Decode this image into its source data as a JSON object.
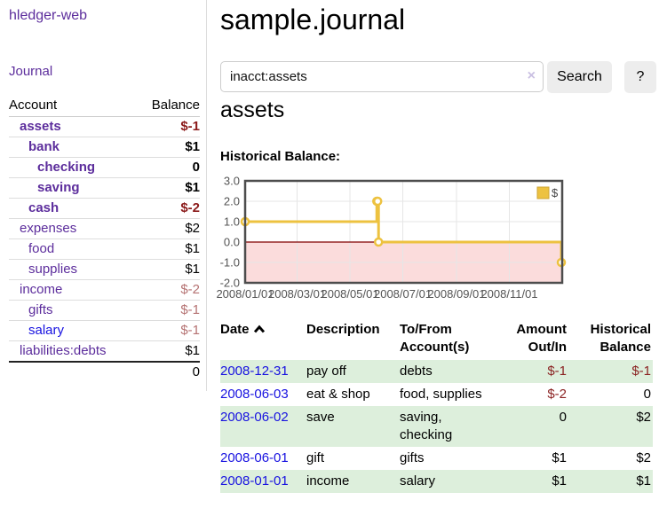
{
  "app": {
    "title": "hledger-web",
    "nav_journal": "Journal"
  },
  "sidebar": {
    "col_account": "Account",
    "col_balance": "Balance",
    "accounts": [
      {
        "name": "assets",
        "balance": "$-1",
        "indent": 1,
        "bold": true,
        "neg": "strong",
        "link": "purple"
      },
      {
        "name": "bank",
        "balance": "$1",
        "indent": 2,
        "bold": true,
        "neg": "",
        "link": "purple"
      },
      {
        "name": "checking",
        "balance": "0",
        "indent": 3,
        "bold": true,
        "neg": "",
        "link": "purple"
      },
      {
        "name": "saving",
        "balance": "$1",
        "indent": 3,
        "bold": true,
        "neg": "",
        "link": "purple"
      },
      {
        "name": "cash",
        "balance": "$-2",
        "indent": 2,
        "bold": true,
        "neg": "strong",
        "link": "purple"
      },
      {
        "name": "expenses",
        "balance": "$2",
        "indent": 1,
        "bold": false,
        "neg": "",
        "link": "purple"
      },
      {
        "name": "food",
        "balance": "$1",
        "indent": 2,
        "bold": false,
        "neg": "",
        "link": "purple"
      },
      {
        "name": "supplies",
        "balance": "$1",
        "indent": 2,
        "bold": false,
        "neg": "",
        "link": "purple"
      },
      {
        "name": "income",
        "balance": "$-2",
        "indent": 1,
        "bold": false,
        "neg": "soft",
        "link": "purple"
      },
      {
        "name": "gifts",
        "balance": "$-1",
        "indent": 2,
        "bold": false,
        "neg": "soft",
        "link": "purple"
      },
      {
        "name": "salary",
        "balance": "$-1",
        "indent": 2,
        "bold": false,
        "neg": "soft",
        "link": "blue"
      },
      {
        "name": "liabilities:debts",
        "balance": "$1",
        "indent": 1,
        "bold": false,
        "neg": "",
        "link": "purple"
      }
    ],
    "total": "0"
  },
  "header": {
    "title": "sample.journal"
  },
  "search": {
    "query": "inacct:assets",
    "clear_icon": "×",
    "button": "Search",
    "help_button": "?"
  },
  "account_page": {
    "heading": "assets",
    "chart_title": "Historical Balance:"
  },
  "chart_data": {
    "type": "line",
    "step": true,
    "title": "Historical Balance",
    "series": [
      {
        "name": "$",
        "color": "#edc240",
        "points": [
          [
            "2008-01-01",
            1
          ],
          [
            "2008-06-01",
            2
          ],
          [
            "2008-06-02",
            2
          ],
          [
            "2008-06-03",
            0
          ],
          [
            "2008-12-31",
            -1
          ]
        ]
      }
    ],
    "xlim": [
      "2008-01-01",
      "2009-01-01"
    ],
    "ylim": [
      -2,
      3
    ],
    "y_ticks": [
      "3.0",
      "2.0",
      "1.0",
      "0.0",
      "-1.0",
      "-2.0"
    ],
    "y_tick_values": [
      3,
      2,
      1,
      0,
      -1,
      -2
    ],
    "x_ticks": [
      "2008/01/01",
      "2008/03/01",
      "2008/05/01",
      "2008/07/01",
      "2008/09/01",
      "2008/11/01"
    ],
    "grid": true,
    "legend": {
      "label": "$",
      "position": "top-right"
    },
    "colors": {
      "line": "#edc240",
      "marker_fill": "#ffffff",
      "negative_region": "#fbdcdc",
      "zero_line": "#800000",
      "grid": "#e6e6e6",
      "border": "#4d4d4d",
      "tick_label": "#545454"
    }
  },
  "register": {
    "columns": [
      "Date",
      "Description",
      "To/From Account(s)",
      "Amount Out/In",
      "Historical Balance"
    ],
    "sort_column": "Date",
    "sort_direction": "ascending",
    "rows": [
      {
        "date": "2008-12-31",
        "description": "pay off",
        "accounts": "debts",
        "amount": "$-1",
        "balance": "$-1",
        "amount_neg": true,
        "balance_neg": true
      },
      {
        "date": "2008-06-03",
        "description": "eat & shop",
        "accounts": "food, supplies",
        "amount": "$-2",
        "balance": "0",
        "amount_neg": true,
        "balance_neg": false
      },
      {
        "date": "2008-06-02",
        "description": "save",
        "accounts": "saving,\nchecking",
        "amount": "0",
        "balance": "$2",
        "amount_neg": false,
        "balance_neg": false
      },
      {
        "date": "2008-06-01",
        "description": "gift",
        "accounts": "gifts",
        "amount": "$1",
        "balance": "$2",
        "amount_neg": false,
        "balance_neg": false
      },
      {
        "date": "2008-01-01",
        "description": "income",
        "accounts": "salary",
        "amount": "$1",
        "balance": "$1",
        "amount_neg": false,
        "balance_neg": false
      }
    ]
  }
}
